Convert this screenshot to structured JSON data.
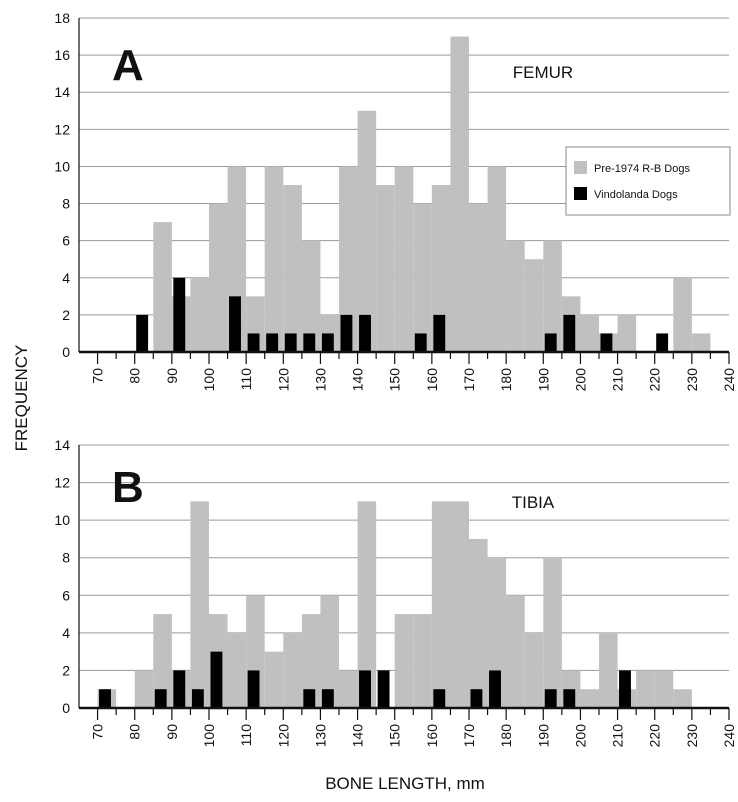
{
  "shared": {
    "ylabel": "FREQUENCY",
    "xlabel": "BONE LENGTH, mm"
  },
  "colors": {
    "pre1974": "#c0c0c0",
    "vindolanda": "#000000",
    "grid": "#9a9a9a",
    "axis": "#111111"
  },
  "chart_data": [
    {
      "type": "bar",
      "panel_letter": "A",
      "title": "FEMUR",
      "xlim": [
        65,
        240
      ],
      "ylim": [
        0,
        18
      ],
      "yticks": [
        0,
        2,
        4,
        6,
        8,
        10,
        12,
        14,
        16,
        18
      ],
      "xticks": [
        70,
        80,
        90,
        100,
        110,
        120,
        130,
        140,
        150,
        160,
        170,
        180,
        190,
        200,
        210,
        220,
        230,
        240
      ],
      "legend": {
        "position": "right",
        "entries": [
          {
            "label": "Pre-1974 R-B Dogs",
            "color": "#c0c0c0"
          },
          {
            "label": "Vindolanda Dogs",
            "color": "#000000"
          }
        ]
      },
      "bin_width": 5,
      "bin_centers": [
        87.5,
        92.5,
        97.5,
        102.5,
        107.5,
        112.5,
        117.5,
        122.5,
        127.5,
        132.5,
        137.5,
        142.5,
        147.5,
        152.5,
        157.5,
        162.5,
        167.5,
        172.5,
        177.5,
        182.5,
        187.5,
        192.5,
        197.5,
        202.5,
        207.5,
        212.5,
        217.5,
        222.5,
        227.5,
        232.5
      ],
      "series": [
        {
          "name": "Pre-1974 R-B Dogs",
          "values": [
            7,
            3,
            4,
            8,
            10,
            3,
            10,
            9,
            6,
            2,
            10,
            13,
            9,
            10,
            8,
            9,
            17,
            8,
            10,
            6,
            5,
            6,
            3,
            2,
            1,
            2,
            0,
            0,
            4,
            1
          ]
        },
        {
          "name": "Vindolanda Dogs",
          "points": [
            {
              "x": 82,
              "y": 2
            },
            {
              "x": 92,
              "y": 4
            },
            {
              "x": 107,
              "y": 3
            },
            {
              "x": 112,
              "y": 1
            },
            {
              "x": 117,
              "y": 1
            },
            {
              "x": 122,
              "y": 1
            },
            {
              "x": 127,
              "y": 1
            },
            {
              "x": 132,
              "y": 1
            },
            {
              "x": 137,
              "y": 2
            },
            {
              "x": 142,
              "y": 2
            },
            {
              "x": 157,
              "y": 1
            },
            {
              "x": 162,
              "y": 2
            },
            {
              "x": 192,
              "y": 1
            },
            {
              "x": 197,
              "y": 2
            },
            {
              "x": 207,
              "y": 1
            },
            {
              "x": 222,
              "y": 1
            }
          ]
        }
      ]
    },
    {
      "type": "bar",
      "panel_letter": "B",
      "title": "TIBIA",
      "xlim": [
        65,
        240
      ],
      "ylim": [
        0,
        14
      ],
      "yticks": [
        0,
        2,
        4,
        6,
        8,
        10,
        12,
        14
      ],
      "xticks": [
        70,
        80,
        90,
        100,
        110,
        120,
        130,
        140,
        150,
        160,
        170,
        180,
        190,
        200,
        210,
        220,
        230,
        240
      ],
      "bin_width": 5,
      "bin_centers": [
        72.5,
        77.5,
        82.5,
        87.5,
        92.5,
        97.5,
        102.5,
        107.5,
        112.5,
        117.5,
        122.5,
        127.5,
        132.5,
        137.5,
        142.5,
        147.5,
        152.5,
        157.5,
        162.5,
        167.5,
        172.5,
        177.5,
        182.5,
        187.5,
        192.5,
        197.5,
        202.5,
        207.5,
        212.5,
        217.5,
        222.5,
        227.5
      ],
      "series": [
        {
          "name": "Pre-1974 R-B Dogs",
          "values": [
            1,
            0,
            2,
            5,
            2,
            11,
            5,
            4,
            6,
            3,
            4,
            5,
            6,
            2,
            11,
            0,
            5,
            5,
            11,
            11,
            9,
            8,
            6,
            4,
            8,
            2,
            1,
            4,
            1,
            2,
            2,
            1
          ]
        },
        {
          "name": "Vindolanda Dogs",
          "points": [
            {
              "x": 72,
              "y": 1
            },
            {
              "x": 87,
              "y": 1
            },
            {
              "x": 92,
              "y": 2
            },
            {
              "x": 97,
              "y": 1
            },
            {
              "x": 102,
              "y": 3
            },
            {
              "x": 112,
              "y": 2
            },
            {
              "x": 127,
              "y": 1
            },
            {
              "x": 132,
              "y": 1
            },
            {
              "x": 142,
              "y": 2
            },
            {
              "x": 147,
              "y": 2
            },
            {
              "x": 162,
              "y": 1
            },
            {
              "x": 172,
              "y": 1
            },
            {
              "x": 177,
              "y": 2
            },
            {
              "x": 192,
              "y": 1
            },
            {
              "x": 197,
              "y": 1
            },
            {
              "x": 212,
              "y": 2
            }
          ]
        }
      ]
    }
  ]
}
